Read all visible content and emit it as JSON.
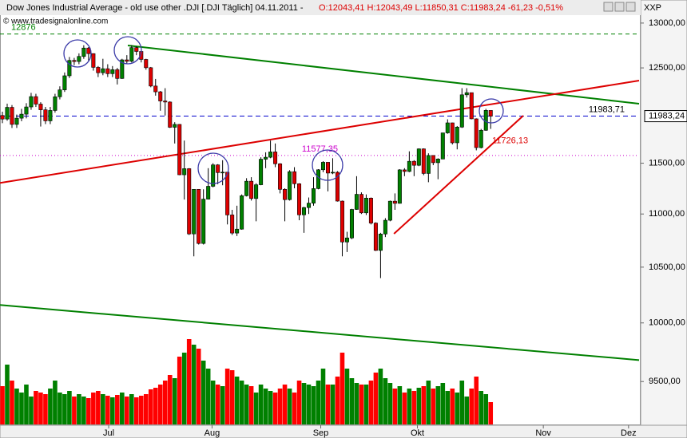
{
  "chart_data": {
    "type": "candlestick",
    "title": "Dow Jones Industrial Average - old use other .DJI [.DJI  Täglich] 04.11.2011 -",
    "quote": "O:12043,41 H:12043,49 L:11850,31 C:11983,24 -61,23 -0,51%",
    "watermark": "© www.tradesignalonline.com",
    "symbol_tag": "XXP",
    "log_scale": true,
    "ylim": [
      9150,
      13265
    ],
    "yticks": [
      {
        "value": 9500,
        "label": "9500,00"
      },
      {
        "value": 10000,
        "label": "10000,00"
      },
      {
        "value": 10500,
        "label": "10500,00"
      },
      {
        "value": 11000,
        "label": "11000,00"
      },
      {
        "value": 11500,
        "label": "11500,00"
      },
      {
        "value": 12500,
        "label": "12500,00"
      },
      {
        "value": 13000,
        "label": "13000,00"
      }
    ],
    "xlim": [
      -0.5,
      133
    ],
    "xticks": [
      {
        "value": 22.2,
        "label": "Jul"
      },
      {
        "value": 43.8,
        "label": "Aug"
      },
      {
        "value": 66.5,
        "label": "Sep"
      },
      {
        "value": 86.7,
        "label": "Okt"
      },
      {
        "value": 113,
        "label": "Nov"
      },
      {
        "value": 130.8,
        "label": "Dez"
      }
    ],
    "up_color": "#008000",
    "down_color": "#dd0000",
    "open": [
      11990,
      11953,
      12076,
      11897,
      11962,
      12004,
      12080,
      12190,
      12110,
      12050,
      11934,
      12043,
      12188,
      12262,
      12414,
      12582,
      12570,
      12626,
      12719,
      12657,
      12506,
      12447,
      12491,
      12437,
      12480,
      12385,
      12588,
      12572,
      12724,
      12681,
      12593,
      12502,
      12303,
      12241,
      12143,
      12132,
      11867,
      11897,
      11384,
      11445,
      10810,
      11240,
      10720,
      11144,
      11270,
      11483,
      11406,
      11410,
      10991,
      10818,
      10855,
      11177,
      11320,
      11150,
      11285,
      11540,
      11560,
      11614,
      11494,
      11240,
      11139,
      11415,
      11295,
      10992,
      11062,
      11105,
      11247,
      11434,
      11509,
      11401,
      11409,
      11125,
      10734,
      10772,
      11044,
      11191,
      11011,
      11154,
      10913,
      10655,
      10809,
      10940,
      11124,
      11103,
      11433,
      11417,
      11519,
      11479,
      11645,
      11397,
      11578,
      11505,
      11542,
      11809,
      11913,
      11707,
      11869,
      12209,
      12232,
      11955,
      11658,
      11836,
      12043.41
    ],
    "high": [
      12030,
      12115,
      12100,
      12000,
      12060,
      12120,
      12230,
      12220,
      12130,
      12080,
      12080,
      12220,
      12300,
      12450,
      12620,
      12610,
      12660,
      12750,
      12730,
      12660,
      12520,
      12600,
      12540,
      12520,
      12500,
      12600,
      12640,
      12750,
      12740,
      12690,
      12600,
      12510,
      12380,
      12250,
      12280,
      12140,
      11920,
      11900,
      11730,
      11450,
      11240,
      11240,
      11240,
      11450,
      11500,
      11490,
      11530,
      11410,
      11040,
      11080,
      11190,
      11350,
      11360,
      11300,
      11560,
      11610,
      11730,
      11700,
      11500,
      11250,
      11430,
      11460,
      11300,
      11070,
      11160,
      11360,
      11440,
      11520,
      11510,
      11550,
      11420,
      11130,
      10830,
      11050,
      11370,
      11210,
      11190,
      11160,
      10920,
      10820,
      10960,
      11130,
      11200,
      11440,
      11450,
      11620,
      11530,
      11650,
      11650,
      11600,
      11580,
      11550,
      11810,
      11950,
      11915,
      11880,
      12280,
      12280,
      12230,
      11960,
      11850,
      12060,
      12043.49
    ],
    "low": [
      11910,
      11935,
      11860,
      11860,
      11930,
      11960,
      12050,
      12080,
      11875,
      11900,
      11900,
      12020,
      12160,
      12240,
      12390,
      12530,
      12540,
      12600,
      12580,
      12470,
      12400,
      12420,
      12400,
      12400,
      12320,
      12380,
      12540,
      12560,
      12640,
      12560,
      12480,
      12290,
      12200,
      12040,
      11990,
      11860,
      11700,
      11380,
      11140,
      10800,
      10600,
      10710,
      10710,
      11140,
      11260,
      11290,
      11280,
      10900,
      10800,
      10790,
      10850,
      11170,
      11130,
      10930,
      11280,
      11450,
      11550,
      11460,
      11200,
      10930,
      11130,
      11250,
      10940,
      10820,
      11000,
      11080,
      11240,
      11410,
      11220,
      11390,
      11120,
      10600,
      10640,
      10760,
      11040,
      11000,
      10990,
      10900,
      10650,
      10400,
      10780,
      10930,
      11040,
      11100,
      11370,
      11410,
      11370,
      11470,
      11380,
      11310,
      11480,
      11340,
      11540,
      11800,
      11690,
      11640,
      11860,
      12180,
      11950,
      11630,
      11650,
      11830,
      11850.31
    ],
    "close": [
      11953,
      12076,
      11897,
      11962,
      12004,
      12080,
      12190,
      12110,
      12050,
      11934,
      12043,
      12188,
      12262,
      12414,
      12582,
      12570,
      12626,
      12719,
      12657,
      12506,
      12447,
      12491,
      12437,
      12480,
      12385,
      12588,
      12572,
      12724,
      12681,
      12593,
      12502,
      12303,
      12241,
      12143,
      12132,
      11867,
      11897,
      11384,
      11445,
      10810,
      11240,
      10720,
      11144,
      11270,
      11483,
      11406,
      11410,
      10991,
      10818,
      10855,
      11177,
      11320,
      11150,
      11285,
      11540,
      11560,
      11614,
      11494,
      11240,
      11139,
      11415,
      11295,
      10992,
      11062,
      11105,
      11247,
      11434,
      11509,
      11401,
      11409,
      11125,
      10734,
      10772,
      11044,
      11191,
      11011,
      11154,
      10913,
      10655,
      10809,
      10940,
      11124,
      11103,
      11433,
      11417,
      11519,
      11479,
      11645,
      11397,
      11578,
      11505,
      11542,
      11809,
      11913,
      11707,
      11869,
      12209,
      12232,
      11955,
      11658,
      11836,
      12044,
      11983.24
    ],
    "volume_ylim": [
      0,
      120
    ],
    "volume": [
      48,
      75,
      55,
      45,
      40,
      50,
      35,
      42,
      40,
      38,
      45,
      55,
      40,
      38,
      42,
      35,
      38,
      35,
      33,
      40,
      42,
      38,
      36,
      34,
      37,
      40,
      35,
      38,
      34,
      36,
      38,
      44,
      46,
      50,
      55,
      62,
      58,
      85,
      90,
      107,
      100,
      95,
      80,
      70,
      55,
      50,
      48,
      70,
      68,
      60,
      55,
      50,
      48,
      40,
      50,
      45,
      42,
      40,
      45,
      50,
      45,
      40,
      55,
      52,
      50,
      48,
      55,
      70,
      50,
      50,
      60,
      90,
      70,
      58,
      52,
      50,
      50,
      55,
      65,
      70,
      58,
      52,
      45,
      48,
      40,
      45,
      42,
      46,
      48,
      55,
      45,
      48,
      52,
      42,
      45,
      40,
      55,
      35,
      45,
      60,
      42,
      38,
      28
    ],
    "trendlines": [
      {
        "color": "#008000",
        "x": [
          26.2,
          133
        ],
        "y": [
          12748,
          12114
        ]
      },
      {
        "color": "#dd0000",
        "x": [
          -0.5,
          133
        ],
        "y": [
          11303,
          12362
        ]
      },
      {
        "color": "#008000",
        "x": [
          -0.5,
          133
        ],
        "y": [
          10158,
          9680
        ]
      },
      {
        "color": "#dd0000",
        "x": [
          81.8,
          108.8
        ],
        "y": [
          10811,
          11988
        ]
      }
    ],
    "levels": [
      {
        "value": 12876,
        "color": "#008000",
        "dash": "5,4"
      },
      {
        "value": 11983.71,
        "label": "11983,71",
        "color": "#0000cc",
        "dash": "6,4"
      },
      {
        "value": 11577.35,
        "label": "11577,35",
        "color": "#cc00cc",
        "dash": "1,3"
      }
    ],
    "annotations": [
      {
        "value": 11726.13,
        "label": "11726,13",
        "color": "#dd0000"
      }
    ],
    "last_price": {
      "value": 11983.24,
      "label": "11983,24"
    }
  }
}
